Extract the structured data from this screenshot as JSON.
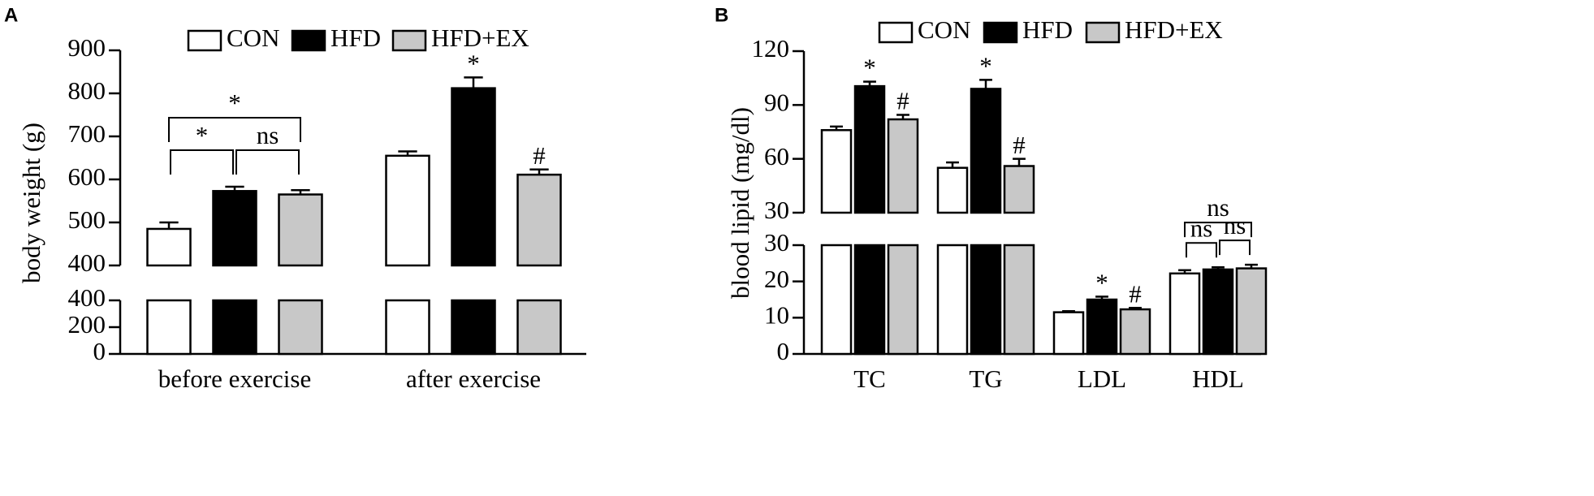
{
  "chart_data": [
    {
      "type": "bar",
      "panel": "A",
      "y_label": "body weight (g)",
      "categories": [
        "before exercise",
        "after exercise"
      ],
      "series": [
        {
          "name": "CON",
          "color": "#ffffff",
          "values": [
            485,
            655
          ],
          "errors": [
            15,
            10
          ]
        },
        {
          "name": "HFD",
          "color": "#000000",
          "values": [
            573,
            812
          ],
          "errors": [
            10,
            25
          ]
        },
        {
          "name": "HFD+EX",
          "color": "#c8c8c8",
          "values": [
            565,
            611
          ],
          "errors": [
            10,
            12
          ]
        }
      ],
      "ylim": [
        0,
        900
      ],
      "axis_segments": [
        {
          "ylim": [
            0,
            400
          ],
          "yticks": [
            0,
            200,
            400
          ]
        },
        {
          "ylim": [
            400,
            900
          ],
          "yticks": [
            400,
            500,
            600,
            700,
            800,
            900
          ]
        }
      ],
      "annotations": [
        {
          "text": "*",
          "series": 1,
          "category": 1
        },
        {
          "text": "#",
          "series": 2,
          "category": 1
        }
      ],
      "brackets": [
        {
          "text": "*",
          "category": 0,
          "from": 0,
          "to": 1
        },
        {
          "text": "ns",
          "category": 0,
          "from": 1,
          "to": 2
        },
        {
          "text": "*",
          "category": 0,
          "from": 0,
          "to": 2
        }
      ]
    },
    {
      "type": "bar",
      "panel": "B",
      "y_label": "blood lipid (mg/dl)",
      "categories": [
        "TC",
        "TG",
        "LDL",
        "HDL"
      ],
      "series": [
        {
          "name": "CON",
          "color": "#ffffff",
          "values": [
            76,
            55,
            11.5,
            22.2
          ],
          "errors": [
            2,
            3,
            0.3,
            0.9
          ]
        },
        {
          "name": "HFD",
          "color": "#000000",
          "values": [
            100.5,
            99,
            15,
            23.3
          ],
          "errors": [
            2.5,
            5,
            0.8,
            0.6
          ]
        },
        {
          "name": "HFD+EX",
          "color": "#c8c8c8",
          "values": [
            82,
            56,
            12.3,
            23.6
          ],
          "errors": [
            2.5,
            4,
            0.4,
            1
          ]
        }
      ],
      "ylim": [
        0,
        120
      ],
      "axis_segments": [
        {
          "ylim": [
            0,
            30
          ],
          "yticks": [
            0,
            10,
            20,
            30
          ]
        },
        {
          "ylim": [
            30,
            120
          ],
          "yticks": [
            30,
            60,
            90,
            120
          ]
        }
      ],
      "annotations": [
        {
          "text": "*",
          "series": 1,
          "category": 0
        },
        {
          "text": "#",
          "series": 2,
          "category": 0
        },
        {
          "text": "*",
          "series": 1,
          "category": 1
        },
        {
          "text": "#",
          "series": 2,
          "category": 1
        },
        {
          "text": "*",
          "series": 1,
          "category": 2
        },
        {
          "text": "#",
          "series": 2,
          "category": 2
        }
      ],
      "brackets": [
        {
          "text": "ns",
          "category": 3,
          "from": 0,
          "to": 1
        },
        {
          "text": "ns",
          "category": 3,
          "from": 1,
          "to": 2
        },
        {
          "text": "ns",
          "category": 3,
          "from": 0,
          "to": 2
        }
      ]
    }
  ]
}
